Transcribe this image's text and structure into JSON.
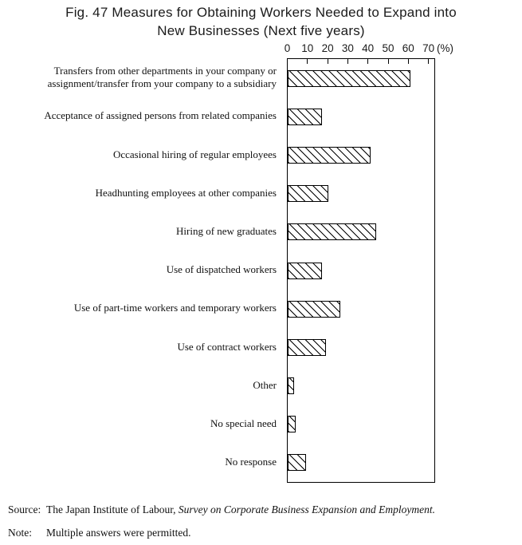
{
  "figure": {
    "title_lines": [
      "Fig. 47  Measures for Obtaining Workers Needed to Expand into",
      "New Businesses (Next five years)"
    ],
    "axis_unit_label": "(%)",
    "source_label": "Source:",
    "source_text_regular": "The Japan Institute of Labour, ",
    "source_text_italic": "Survey on Corporate Business Expansion and Employment.",
    "note_label": "Note:",
    "note_text": "Multiple answers were permitted."
  },
  "chart_data": {
    "type": "bar",
    "orientation": "horizontal",
    "title": "Fig. 47 Measures for Obtaining Workers Needed to Expand into New Businesses (Next five years)",
    "xlabel": "(%)",
    "xlim": [
      0,
      73
    ],
    "xticks": [
      0,
      10,
      20,
      30,
      40,
      50,
      60,
      70
    ],
    "grid": false,
    "legend": "none",
    "bar_fill": "#ffffff",
    "bar_hatch": "diagonal-backslash",
    "bar_border_color": "#000000",
    "categories": [
      "Transfers from other departments in your company or assignment/transfer from your company to a subsidiary",
      "Acceptance of assigned persons from related companies",
      "Occasional hiring of regular employees",
      "Headhunting employees at other companies",
      "Hiring of new graduates",
      "Use of dispatched workers",
      "Use of part-time workers and temporary workers",
      "Use of contract workers",
      "Other",
      "No special need",
      "No response"
    ],
    "values": [
      61,
      17,
      41,
      20,
      44,
      17,
      26,
      19,
      3,
      4,
      9
    ]
  }
}
